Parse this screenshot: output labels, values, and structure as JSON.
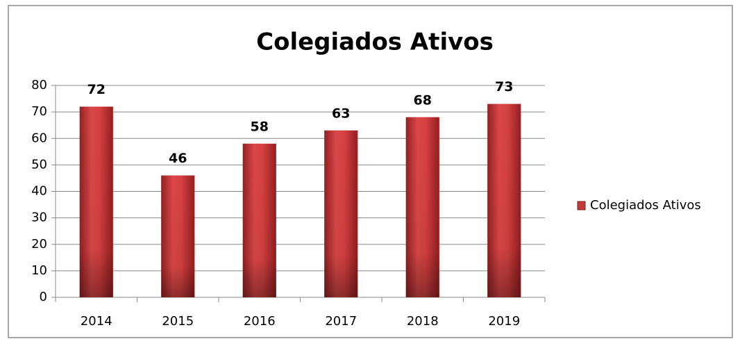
{
  "chart_data": {
    "type": "bar",
    "title": "Colegiados Ativos",
    "categories": [
      "2014",
      "2015",
      "2016",
      "2017",
      "2018",
      "2019"
    ],
    "series": [
      {
        "name": "Colegiados Ativos",
        "color": "#c0393b",
        "values": [
          72,
          46,
          58,
          63,
          68,
          73
        ]
      }
    ],
    "ylim": [
      0,
      80
    ],
    "yticks": [
      0,
      10,
      20,
      30,
      40,
      50,
      60,
      70,
      80
    ],
    "grid": true,
    "legend": "right"
  }
}
